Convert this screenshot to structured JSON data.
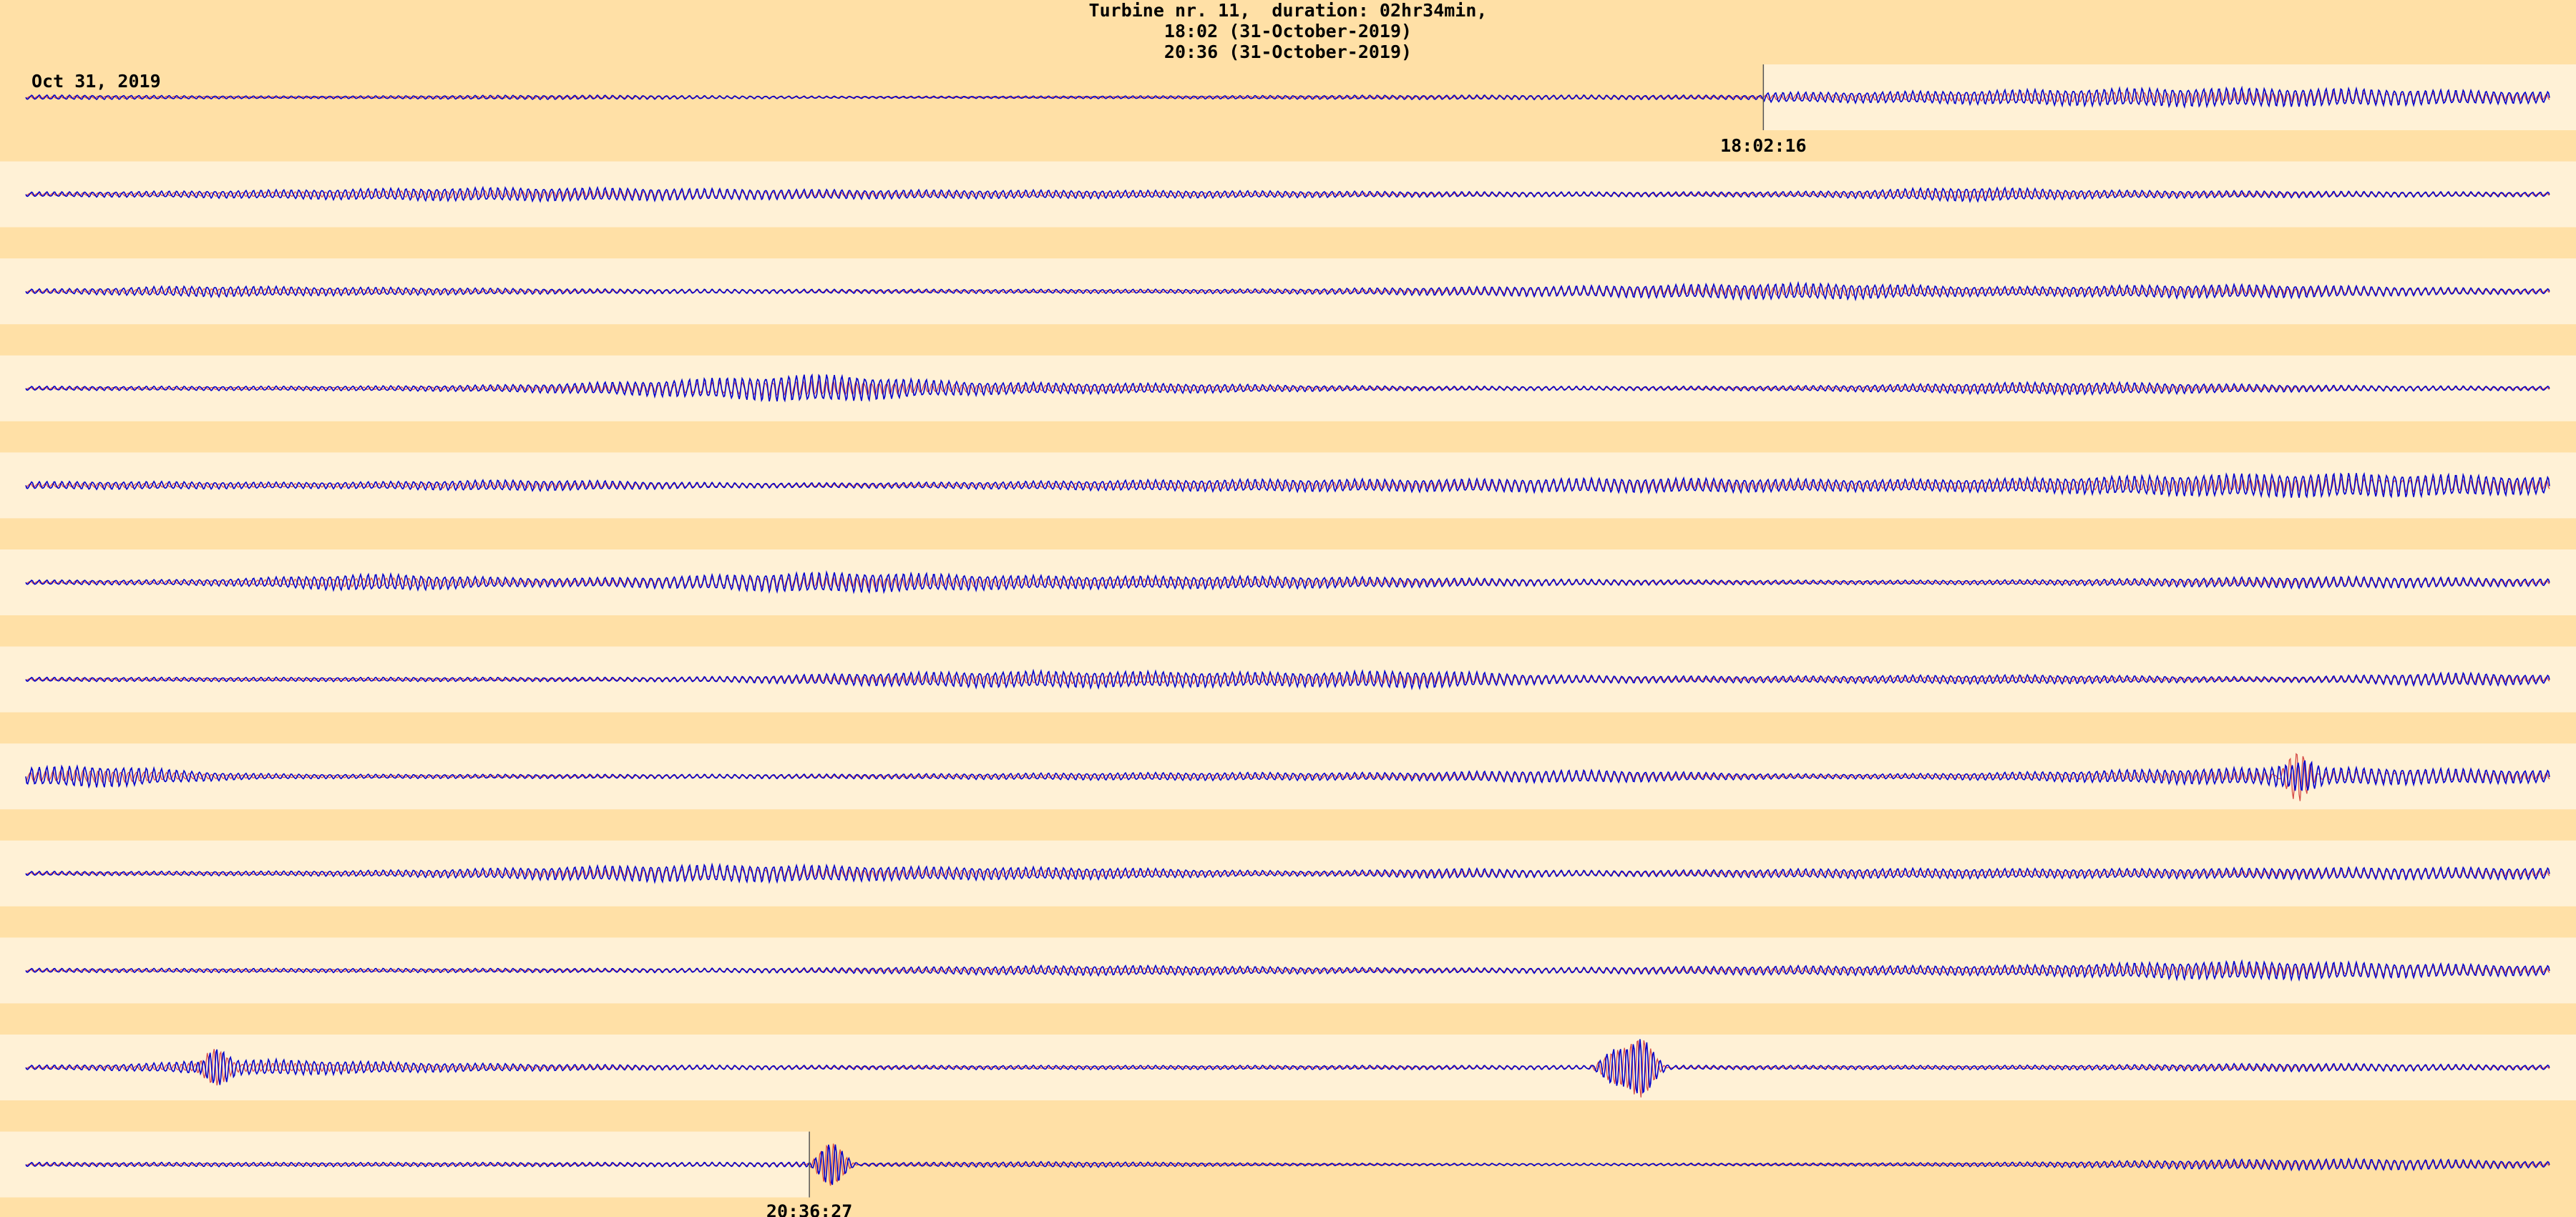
{
  "header": {
    "line1": "Turbine nr. 11,  duration: 02hr34min,",
    "line2": "18:02 (31-October-2019)",
    "line3": "20:36 (31-October-2019)"
  },
  "date_label": "Oct 31, 2019",
  "colors": {
    "background": "#FFE0A6",
    "band": "#FFF1D6",
    "trace_primary": "#0000CC",
    "trace_secondary": "#CC2222"
  },
  "chart_data": {
    "type": "line",
    "title": "Turbine nr. 11,  duration: 02hr34min,",
    "row_count": 12,
    "start_marker": {
      "row": 0,
      "label": "18:02:16"
    },
    "end_marker": {
      "row": 11,
      "label": "20:36:27"
    },
    "legend": "none",
    "grid": false,
    "events": [
      {
        "row": 7,
        "position": 0.9,
        "relative_amplitude": 4.5
      },
      {
        "row": 10,
        "position": 0.074,
        "relative_amplitude": 4.0
      },
      {
        "row": 10,
        "position": 0.63,
        "relative_amplitude": 3.5
      },
      {
        "row": 10,
        "position": 0.64,
        "relative_amplitude": 6.0
      },
      {
        "row": 11,
        "position": 0.319,
        "relative_amplitude": 4.5
      }
    ]
  }
}
